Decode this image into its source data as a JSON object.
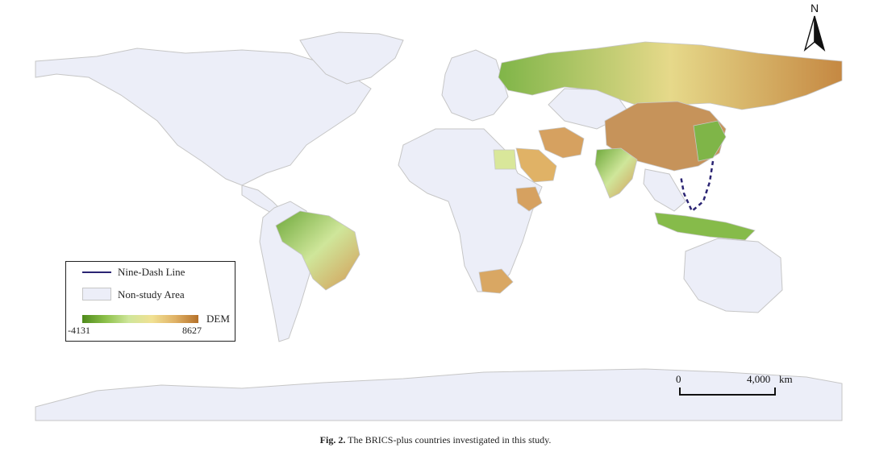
{
  "legend": {
    "nine_dash_label": "Nine-Dash Line",
    "non_study_label": "Non-study Area",
    "dem_label": "DEM",
    "dem_min": "-4131",
    "dem_max": "8627"
  },
  "scale_bar": {
    "start": "0",
    "end": "4,000",
    "unit": "km"
  },
  "north_arrow": {
    "letter": "N"
  },
  "caption": {
    "label": "Fig. 2.",
    "text": "The BRICS-plus countries investigated in this study."
  },
  "colors": {
    "non_study_fill": "#eceef8",
    "border": "#c6c6c6",
    "nine_dash": "#2b2473",
    "dem_low": "#4e8a1b",
    "dem_mid": "#f1e193",
    "dem_high": "#b5712a"
  }
}
